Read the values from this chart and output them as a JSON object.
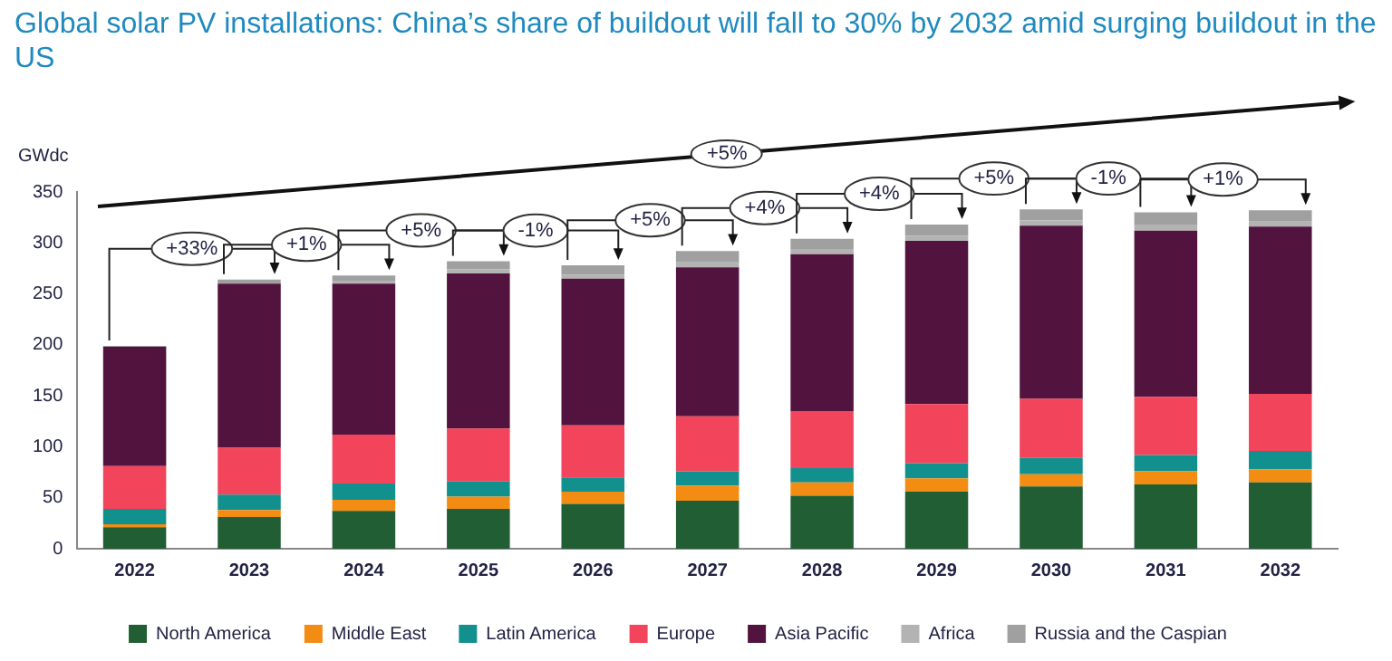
{
  "chart_data": {
    "type": "bar",
    "title": "Global solar PV installations: China’s share of buildout will fall to 30% by 2032 amid surging buildout in the US",
    "ylabel": "GWdc",
    "categories": [
      "2022",
      "2023",
      "2024",
      "2025",
      "2026",
      "2027",
      "2028",
      "2029",
      "2030",
      "2031",
      "2032"
    ],
    "stacked": true,
    "ylim": [
      0,
      350
    ],
    "yticks": [
      0,
      50,
      100,
      150,
      200,
      250,
      300,
      350
    ],
    "grid": false,
    "legend": "bottom",
    "series": [
      {
        "name": "North America",
        "color": "#225e33",
        "values": [
          21,
          31,
          37,
          39,
          44,
          47,
          52,
          56,
          61,
          63,
          65
        ]
      },
      {
        "name": "Middle East",
        "color": "#f28c13",
        "values": [
          3,
          7,
          11,
          12,
          12,
          15,
          13,
          13,
          12,
          13,
          13
        ]
      },
      {
        "name": "Latin America",
        "color": "#12908e",
        "values": [
          15,
          15,
          16,
          15,
          14,
          14,
          14,
          15,
          16,
          16,
          18
        ]
      },
      {
        "name": "Europe",
        "color": "#f2445a",
        "values": [
          42,
          46,
          48,
          52,
          51,
          54,
          56,
          58,
          58,
          57,
          56
        ]
      },
      {
        "name": "Asia Pacific",
        "color": "#52143f",
        "values": [
          117,
          161,
          148,
          152,
          144,
          146,
          154,
          160,
          170,
          163,
          164
        ]
      },
      {
        "name": "Africa",
        "color": "#b3b3b3",
        "values": [
          null,
          null,
          3,
          4,
          4,
          5,
          5,
          5,
          5,
          6,
          5
        ]
      },
      {
        "name": "Russia and the Caspian",
        "color": "#a0a0a0",
        "values": [
          1,
          4,
          5,
          8,
          9,
          11,
          10,
          11,
          11,
          12,
          11
        ]
      }
    ],
    "annotations": [
      "+33%",
      "+1%",
      "+5%",
      "-1%",
      "+5%",
      "+4%",
      "+4%",
      "+5%",
      "-1%",
      "+1%",
      "+5%"
    ]
  }
}
